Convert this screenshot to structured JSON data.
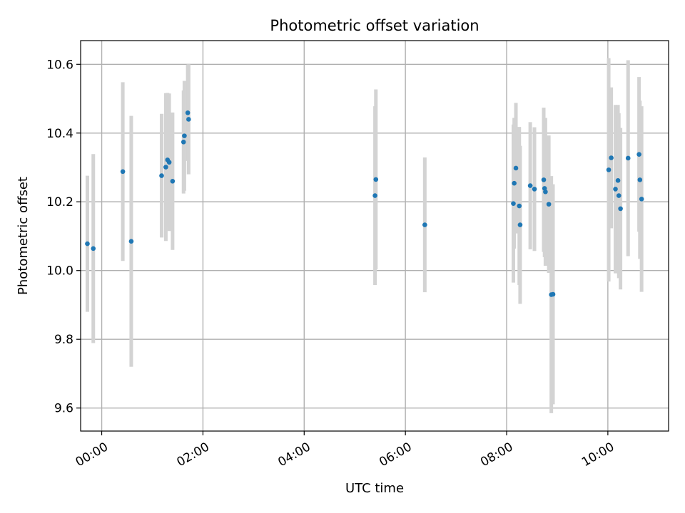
{
  "chart_data": {
    "type": "scatter",
    "title": "Photometric offset variation",
    "xlabel": "UTC time",
    "ylabel": "Photometric offset",
    "x_unit": "UTC time of day (HH:MM)",
    "xlim": [
      "-00:25",
      "11:12"
    ],
    "ylim": [
      9.533,
      10.669
    ],
    "x_ticks": [
      "00:00",
      "02:00",
      "04:00",
      "06:00",
      "08:00",
      "10:00"
    ],
    "y_ticks": [
      9.6,
      9.8,
      10.0,
      10.2,
      10.4,
      10.6
    ],
    "y_tick_labels": [
      "9.6",
      "9.8",
      "10.0",
      "10.2",
      "10.4",
      "10.6"
    ],
    "grid": true,
    "legend": "none",
    "colors": {
      "marker": "#1f77b4",
      "errorbar": "#d3d3d3",
      "grid": "#b0b0b0"
    },
    "points": [
      {
        "x": "-00:17",
        "y": 10.078,
        "err": 0.198
      },
      {
        "x": "-00:10",
        "y": 10.064,
        "err": 0.275
      },
      {
        "x": "00:25",
        "y": 10.288,
        "err": 0.26
      },
      {
        "x": "00:35",
        "y": 10.085,
        "err": 0.365
      },
      {
        "x": "01:11",
        "y": 10.276,
        "err": 0.18
      },
      {
        "x": "01:16",
        "y": 10.301,
        "err": 0.215
      },
      {
        "x": "01:18",
        "y": 10.322,
        "err": 0.195
      },
      {
        "x": "01:20",
        "y": 10.315,
        "err": 0.2
      },
      {
        "x": "01:24",
        "y": 10.26,
        "err": 0.2
      },
      {
        "x": "01:37",
        "y": 10.374,
        "err": 0.15
      },
      {
        "x": "01:38",
        "y": 10.392,
        "err": 0.16
      },
      {
        "x": "01:42",
        "y": 10.459,
        "err": 0.14
      },
      {
        "x": "01:43",
        "y": 10.44,
        "err": 0.16
      },
      {
        "x": "05:24",
        "y": 10.218,
        "err": 0.26
      },
      {
        "x": "05:25",
        "y": 10.265,
        "err": 0.262
      },
      {
        "x": "06:23",
        "y": 10.133,
        "err": 0.196
      },
      {
        "x": "08:08",
        "y": 10.195,
        "err": 0.23
      },
      {
        "x": "08:09",
        "y": 10.254,
        "err": 0.19
      },
      {
        "x": "08:11",
        "y": 10.298,
        "err": 0.19
      },
      {
        "x": "08:15",
        "y": 10.188,
        "err": 0.23
      },
      {
        "x": "08:16",
        "y": 10.133,
        "err": 0.23
      },
      {
        "x": "08:28",
        "y": 10.247,
        "err": 0.185
      },
      {
        "x": "08:33",
        "y": 10.237,
        "err": 0.18
      },
      {
        "x": "08:44",
        "y": 10.264,
        "err": 0.21
      },
      {
        "x": "08:45",
        "y": 10.239,
        "err": 0.2
      },
      {
        "x": "08:46",
        "y": 10.229,
        "err": 0.215
      },
      {
        "x": "08:50",
        "y": 10.193,
        "err": 0.2
      },
      {
        "x": "08:53",
        "y": 9.93,
        "err": 0.345
      },
      {
        "x": "08:55",
        "y": 9.931,
        "err": 0.32
      },
      {
        "x": "10:01",
        "y": 10.293,
        "err": 0.325
      },
      {
        "x": "10:04",
        "y": 10.328,
        "err": 0.205
      },
      {
        "x": "10:09",
        "y": 10.237,
        "err": 0.245
      },
      {
        "x": "10:12",
        "y": 10.262,
        "err": 0.22
      },
      {
        "x": "10:13",
        "y": 10.218,
        "err": 0.24
      },
      {
        "x": "10:15",
        "y": 10.18,
        "err": 0.235
      },
      {
        "x": "10:24",
        "y": 10.327,
        "err": 0.285
      },
      {
        "x": "10:37",
        "y": 10.338,
        "err": 0.225
      },
      {
        "x": "10:38",
        "y": 10.264,
        "err": 0.23
      },
      {
        "x": "10:40",
        "y": 10.208,
        "err": 0.27
      }
    ]
  }
}
